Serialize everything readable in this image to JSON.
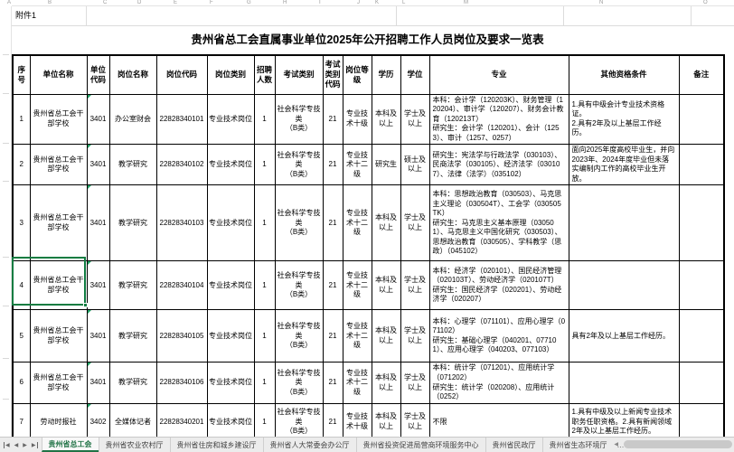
{
  "colors": {
    "accent_green": "#217346",
    "selection_green": "#107c41",
    "error_triangle_green": "#21a366"
  },
  "sheet": {
    "attachment_label": "附件1",
    "column_letters": [
      "A",
      "B",
      "C",
      "D",
      "E",
      "F",
      "G",
      "H",
      "I",
      "J",
      "K",
      "L",
      "M",
      "N",
      "O"
    ]
  },
  "table": {
    "title": "贵州省总工会直属事业单位2025年公开招聘工作人员岗位及要求一览表",
    "column_keys": [
      "seq",
      "unit-name",
      "unit-code",
      "post-name",
      "post-code",
      "post-type",
      "headcount",
      "exam-type",
      "exam-code",
      "post-level",
      "education",
      "degree",
      "major",
      "other-requirements",
      "remark"
    ],
    "columns": [
      "序号",
      "单位名称",
      "单位代码",
      "岗位名称",
      "岗位代码",
      "岗位类别",
      "招聘人数",
      "考试类别",
      "考试类别代码",
      "岗位等级",
      "学历",
      "学位",
      "专业",
      "其他资格条件",
      "备注"
    ],
    "rows": [
      [
        "1",
        "贵州省总工会干部学校",
        "3401",
        "办公室财会",
        "22828340101",
        "专业技术岗位",
        "1",
        "社会科学专技类\n（B类）",
        "21",
        "专业技术十级",
        "本科及以上",
        "学士及以上",
        "本科：会计学（120203K）、财务管理（120204）、审计学（120207）、财务会计教育（120213T）\n研究生：会计学（120201）、会计（1253）、审计（1257、0257）",
        "1.具有中级会计专业技术资格证。\n2.具有2年及以上基层工作经历。",
        ""
      ],
      [
        "2",
        "贵州省总工会干部学校",
        "3401",
        "教学研究",
        "22828340102",
        "专业技术岗位",
        "1",
        "社会科学专技类\n（B类）",
        "21",
        "专业技术十二级",
        "研究生",
        "硕士及以上",
        "研究生：宪法学与行政法学（030103）、民商法学（030105）、经济法学（030107）、法律（法学）（035102）",
        "面向2025年度高校毕业生，并向2023年、2024年度毕业但未落实编制内工作的高校毕业生开放。",
        ""
      ],
      [
        "3",
        "贵州省总工会干部学校",
        "3401",
        "教学研究",
        "22828340103",
        "专业技术岗位",
        "1",
        "社会科学专技类\n（B类）",
        "21",
        "专业技术十二级",
        "本科及以上",
        "学士及以上",
        "本科：思想政治教育（030503）、马克思主义理论（030504T）、工会学（030505TK）\n研究生：马克思主义基本原理（030501）、马克思主义中国化研究（030503）、思想政治教育（030505）、学科教学（思政）（045102）",
        "",
        ""
      ],
      [
        "4",
        "贵州省总工会干部学校",
        "3401",
        "教学研究",
        "22828340104",
        "专业技术岗位",
        "1",
        "社会科学专技类\n（B类）",
        "21",
        "专业技术十二级",
        "本科及以上",
        "学士及以上",
        "本科：经济学（020101）、国民经济管理（020103T）、劳动经济学（020107T）\n研究生：国民经济学（020201）、劳动经济学（020207）",
        "",
        ""
      ],
      [
        "5",
        "贵州省总工会干部学校",
        "3401",
        "教学研究",
        "22828340105",
        "专业技术岗位",
        "1",
        "社会科学专技类\n（B类）",
        "21",
        "专业技术十二级",
        "本科及以上",
        "学士及以上",
        "本科：心理学（071101）、应用心理学（071102）\n研究生：基础心理学（040201、077101）、应用心理学（040203、077103）",
        "具有2年及以上基层工作经历。",
        ""
      ],
      [
        "6",
        "贵州省总工会干部学校",
        "3401",
        "教学研究",
        "22828340106",
        "专业技术岗位",
        "1",
        "社会科学专技类\n（B类）",
        "21",
        "专业技术十二级",
        "本科及以上",
        "学士及以上",
        "本科：统计学（071201）、应用统计学（071202）\n研究生：统计学（020208）、应用统计（0252）",
        "",
        ""
      ],
      [
        "7",
        "劳动时报社",
        "3402",
        "全媒体记者",
        "22828340201",
        "专业技术岗位",
        "1",
        "社会科学专技类\n（B类）",
        "21",
        "专业技术十级",
        "本科及以上",
        "学士及以上",
        "不限",
        "1.具有中级及以上新闻专业技术职务任职资格。2.具有新闻领域2年及以上基层工作经历。",
        ""
      ]
    ]
  },
  "sheet_bar": {
    "tabs": [
      "贵州省总工会",
      "贵州省农业农村厅",
      "贵州省住房和城乡建设厅",
      "贵州省人大常委会办公厅",
      "贵州省投资促进局营商环境服务中心",
      "贵州省民政厅",
      "贵州省生态环境厅"
    ],
    "active_index": 0,
    "overflow_label": "…",
    "add_label": "+"
  }
}
